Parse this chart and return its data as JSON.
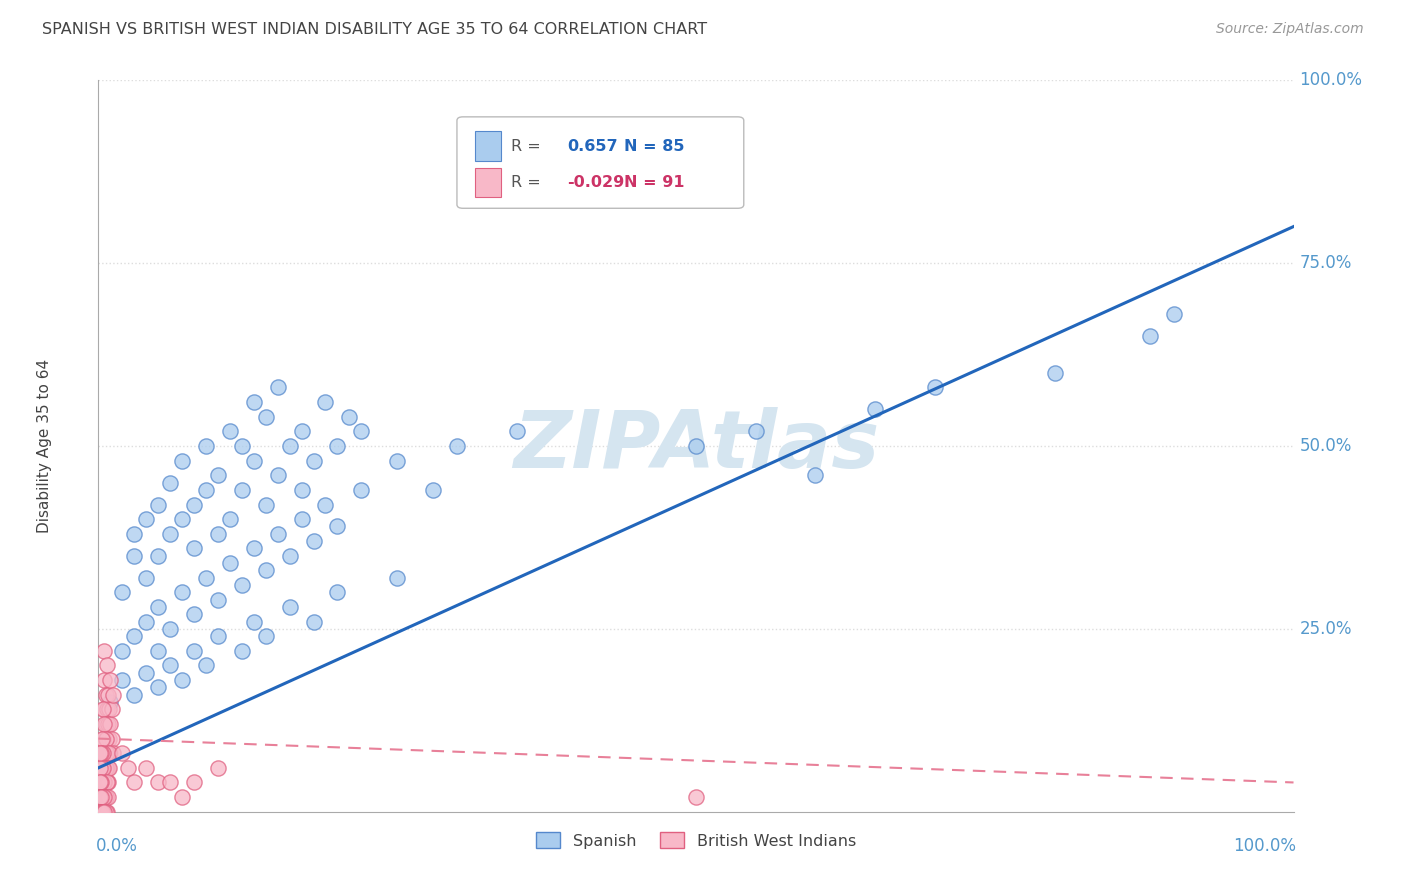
{
  "title": "SPANISH VS BRITISH WEST INDIAN DISABILITY AGE 35 TO 64 CORRELATION CHART",
  "source": "Source: ZipAtlas.com",
  "ylabel": "Disability Age 35 to 64",
  "r_spanish": 0.657,
  "n_spanish": 85,
  "r_bwi": -0.029,
  "n_bwi": 91,
  "spanish_face_color": "#aaccee",
  "spanish_edge_color": "#5588cc",
  "bwi_face_color": "#f8b8c8",
  "bwi_edge_color": "#e06080",
  "spanish_line_color": "#2266bb",
  "bwi_line_color": "#e88099",
  "grid_color": "#dddddd",
  "background_color": "#ffffff",
  "title_color": "#444444",
  "axis_label_color": "#5599cc",
  "legend_r_color_spanish": "#2266bb",
  "legend_r_color_bwi": "#cc3366",
  "watermark_color": "#d5e5f0",
  "spanish_points": [
    [
      0.02,
      0.3
    ],
    [
      0.03,
      0.35
    ],
    [
      0.03,
      0.38
    ],
    [
      0.04,
      0.32
    ],
    [
      0.04,
      0.4
    ],
    [
      0.05,
      0.35
    ],
    [
      0.05,
      0.42
    ],
    [
      0.06,
      0.38
    ],
    [
      0.06,
      0.45
    ],
    [
      0.07,
      0.4
    ],
    [
      0.07,
      0.48
    ],
    [
      0.08,
      0.36
    ],
    [
      0.08,
      0.42
    ],
    [
      0.09,
      0.44
    ],
    [
      0.09,
      0.5
    ],
    [
      0.1,
      0.38
    ],
    [
      0.1,
      0.46
    ],
    [
      0.11,
      0.4
    ],
    [
      0.11,
      0.52
    ],
    [
      0.12,
      0.44
    ],
    [
      0.12,
      0.5
    ],
    [
      0.13,
      0.48
    ],
    [
      0.13,
      0.56
    ],
    [
      0.14,
      0.42
    ],
    [
      0.14,
      0.54
    ],
    [
      0.15,
      0.46
    ],
    [
      0.15,
      0.58
    ],
    [
      0.16,
      0.5
    ],
    [
      0.17,
      0.44
    ],
    [
      0.17,
      0.52
    ],
    [
      0.18,
      0.48
    ],
    [
      0.19,
      0.56
    ],
    [
      0.2,
      0.5
    ],
    [
      0.21,
      0.54
    ],
    [
      0.22,
      0.52
    ],
    [
      0.02,
      0.22
    ],
    [
      0.03,
      0.24
    ],
    [
      0.04,
      0.26
    ],
    [
      0.05,
      0.22
    ],
    [
      0.05,
      0.28
    ],
    [
      0.06,
      0.25
    ],
    [
      0.07,
      0.3
    ],
    [
      0.08,
      0.27
    ],
    [
      0.09,
      0.32
    ],
    [
      0.1,
      0.29
    ],
    [
      0.11,
      0.34
    ],
    [
      0.12,
      0.31
    ],
    [
      0.13,
      0.36
    ],
    [
      0.14,
      0.33
    ],
    [
      0.15,
      0.38
    ],
    [
      0.16,
      0.35
    ],
    [
      0.17,
      0.4
    ],
    [
      0.18,
      0.37
    ],
    [
      0.19,
      0.42
    ],
    [
      0.2,
      0.39
    ],
    [
      0.22,
      0.44
    ],
    [
      0.25,
      0.48
    ],
    [
      0.28,
      0.44
    ],
    [
      0.3,
      0.5
    ],
    [
      0.35,
      0.52
    ],
    [
      0.01,
      0.15
    ],
    [
      0.02,
      0.18
    ],
    [
      0.03,
      0.16
    ],
    [
      0.04,
      0.19
    ],
    [
      0.05,
      0.17
    ],
    [
      0.06,
      0.2
    ],
    [
      0.07,
      0.18
    ],
    [
      0.08,
      0.22
    ],
    [
      0.09,
      0.2
    ],
    [
      0.1,
      0.24
    ],
    [
      0.12,
      0.22
    ],
    [
      0.13,
      0.26
    ],
    [
      0.14,
      0.24
    ],
    [
      0.16,
      0.28
    ],
    [
      0.18,
      0.26
    ],
    [
      0.2,
      0.3
    ],
    [
      0.25,
      0.32
    ],
    [
      0.5,
      0.5
    ],
    [
      0.55,
      0.52
    ],
    [
      0.6,
      0.46
    ],
    [
      0.65,
      0.55
    ],
    [
      0.7,
      0.58
    ],
    [
      0.8,
      0.6
    ],
    [
      0.88,
      0.65
    ],
    [
      0.9,
      0.68
    ]
  ],
  "bwi_points": [
    [
      0.005,
      0.14
    ],
    [
      0.005,
      0.18
    ],
    [
      0.005,
      0.22
    ],
    [
      0.006,
      0.12
    ],
    [
      0.006,
      0.16
    ],
    [
      0.007,
      0.1
    ],
    [
      0.007,
      0.14
    ],
    [
      0.007,
      0.2
    ],
    [
      0.008,
      0.08
    ],
    [
      0.008,
      0.12
    ],
    [
      0.008,
      0.16
    ],
    [
      0.009,
      0.1
    ],
    [
      0.009,
      0.14
    ],
    [
      0.01,
      0.08
    ],
    [
      0.01,
      0.12
    ],
    [
      0.01,
      0.18
    ],
    [
      0.011,
      0.1
    ],
    [
      0.011,
      0.14
    ],
    [
      0.012,
      0.08
    ],
    [
      0.012,
      0.16
    ],
    [
      0.004,
      0.1
    ],
    [
      0.004,
      0.14
    ],
    [
      0.005,
      0.08
    ],
    [
      0.005,
      0.12
    ],
    [
      0.006,
      0.08
    ],
    [
      0.006,
      0.1
    ],
    [
      0.007,
      0.06
    ],
    [
      0.007,
      0.08
    ],
    [
      0.008,
      0.06
    ],
    [
      0.009,
      0.08
    ],
    [
      0.003,
      0.08
    ],
    [
      0.003,
      0.1
    ],
    [
      0.004,
      0.06
    ],
    [
      0.004,
      0.08
    ],
    [
      0.005,
      0.06
    ],
    [
      0.005,
      0.04
    ],
    [
      0.006,
      0.06
    ],
    [
      0.007,
      0.04
    ],
    [
      0.008,
      0.04
    ],
    [
      0.009,
      0.06
    ],
    [
      0.002,
      0.06
    ],
    [
      0.002,
      0.08
    ],
    [
      0.003,
      0.04
    ],
    [
      0.003,
      0.06
    ],
    [
      0.004,
      0.04
    ],
    [
      0.004,
      0.06
    ],
    [
      0.005,
      0.02
    ],
    [
      0.005,
      0.04
    ],
    [
      0.006,
      0.02
    ],
    [
      0.007,
      0.04
    ],
    [
      0.001,
      0.04
    ],
    [
      0.001,
      0.06
    ],
    [
      0.002,
      0.02
    ],
    [
      0.002,
      0.04
    ],
    [
      0.003,
      0.02
    ],
    [
      0.004,
      0.02
    ],
    [
      0.005,
      0.0
    ],
    [
      0.006,
      0.02
    ],
    [
      0.007,
      0.0
    ],
    [
      0.008,
      0.02
    ],
    [
      0.001,
      0.02
    ],
    [
      0.001,
      0.04
    ],
    [
      0.002,
      0.0
    ],
    [
      0.002,
      0.02
    ],
    [
      0.003,
      0.0
    ],
    [
      0.003,
      0.02
    ],
    [
      0.004,
      0.0
    ],
    [
      0.004,
      0.02
    ],
    [
      0.005,
      0.02
    ],
    [
      0.006,
      0.0
    ],
    [
      0.001,
      0.0
    ],
    [
      0.001,
      0.02
    ],
    [
      0.002,
      0.0
    ],
    [
      0.002,
      0.02
    ],
    [
      0.003,
      0.0
    ],
    [
      0.001,
      0.0
    ],
    [
      0.002,
      0.0
    ],
    [
      0.003,
      0.0
    ],
    [
      0.004,
      0.0
    ],
    [
      0.005,
      0.0
    ],
    [
      0.02,
      0.08
    ],
    [
      0.025,
      0.06
    ],
    [
      0.03,
      0.04
    ],
    [
      0.04,
      0.06
    ],
    [
      0.05,
      0.04
    ],
    [
      0.06,
      0.04
    ],
    [
      0.07,
      0.02
    ],
    [
      0.08,
      0.04
    ],
    [
      0.1,
      0.06
    ],
    [
      0.5,
      0.02
    ],
    [
      0.001,
      0.08
    ]
  ],
  "xlim": [
    0,
    1.0
  ],
  "ylim": [
    0,
    1.0
  ]
}
